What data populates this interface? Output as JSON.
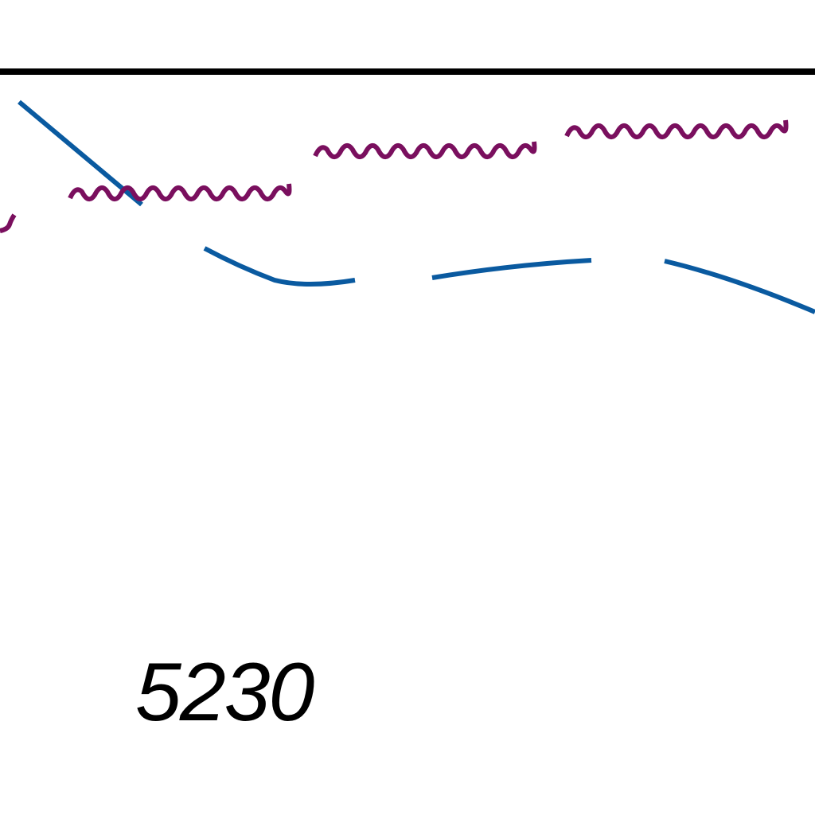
{
  "map": {
    "label": "5230",
    "colors": {
      "background": "#ffffff",
      "boundary": "#000000",
      "contour": "#0a5aa0",
      "wavy_line": "#7a0f5e",
      "label": "#000000"
    },
    "features": [
      {
        "name": "boundary-line",
        "kind": "solid-line",
        "color": "black"
      },
      {
        "name": "wavy-line",
        "kind": "wavy-line",
        "color": "purple",
        "count": 3
      },
      {
        "name": "dashed-line",
        "kind": "dashed-line",
        "color": "blue"
      }
    ]
  }
}
